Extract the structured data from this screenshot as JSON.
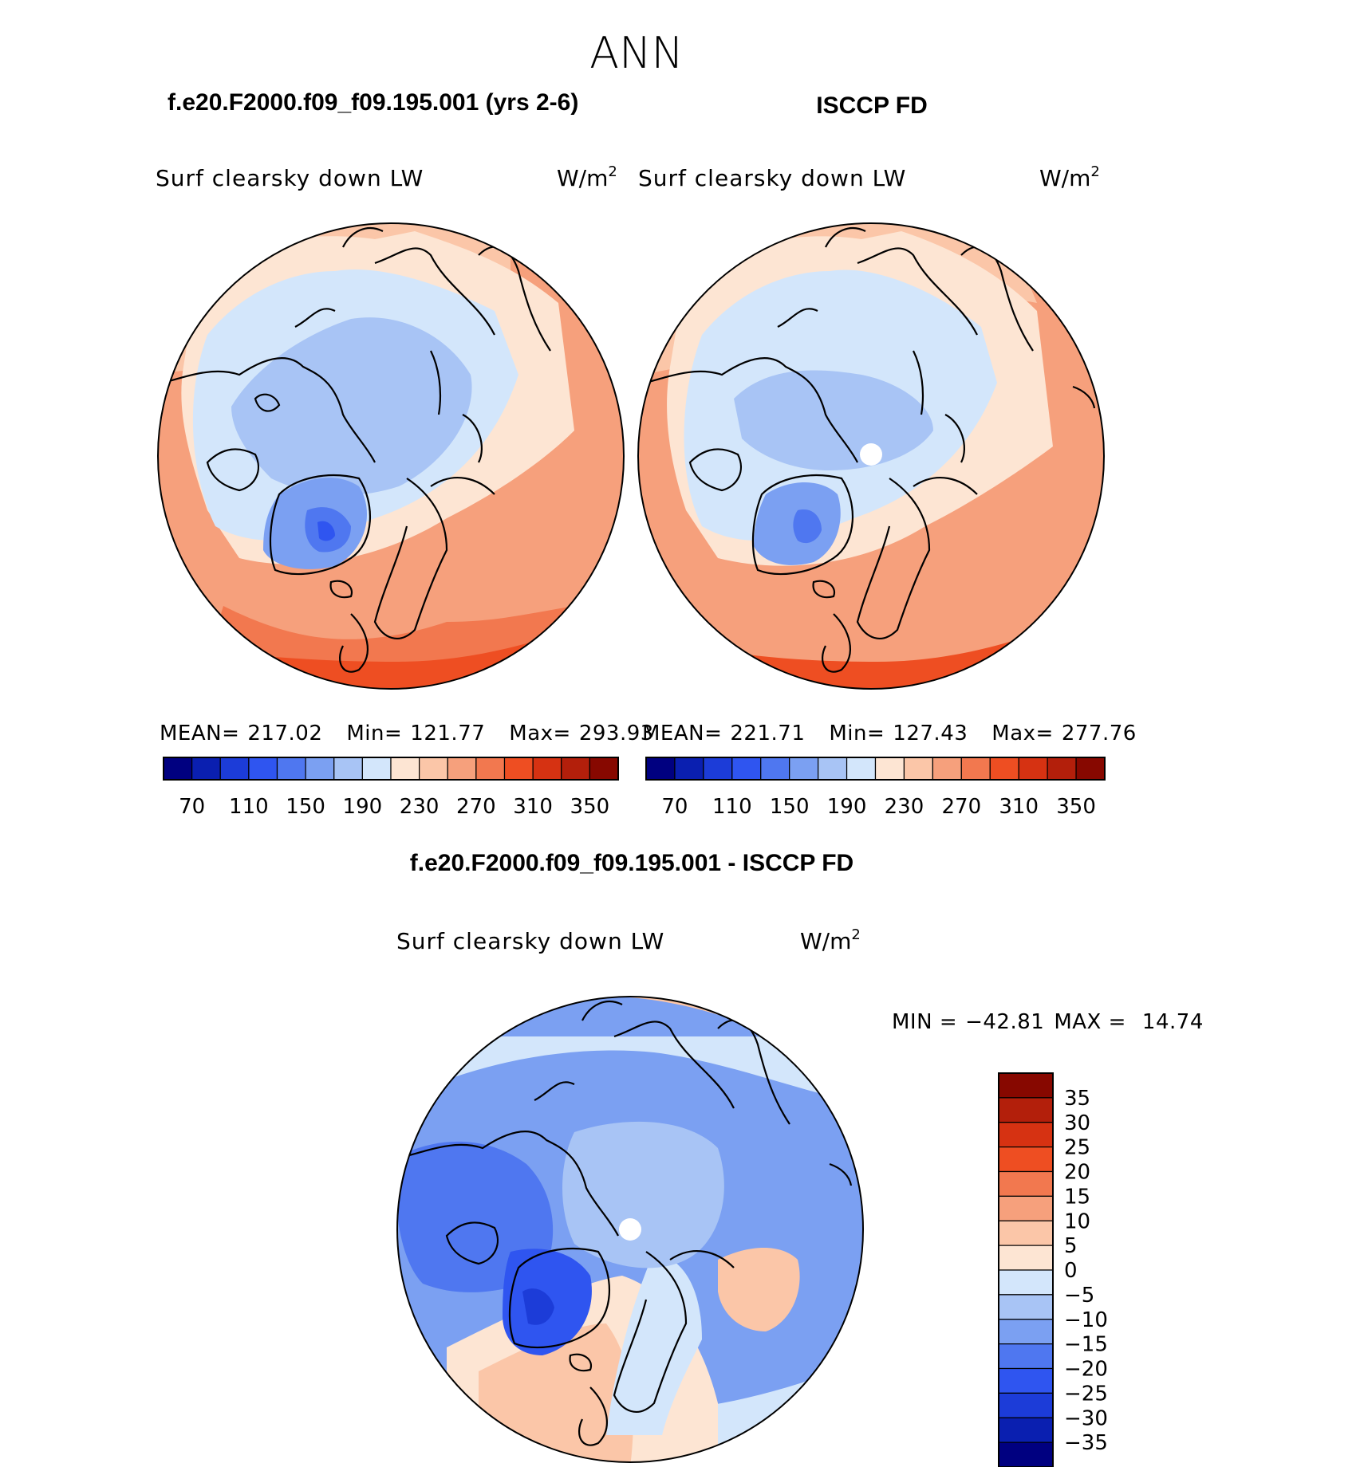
{
  "page_title": "ANN",
  "chart_data": [
    {
      "type": "heatmap",
      "title": "f.e20.F2000.f09_f09.195.001 (yrs 2-6)",
      "variable": "Surf clearsky down LW",
      "units": "W/m",
      "units_sup": "2",
      "projection": "north polar stereographic",
      "stats": {
        "mean_label": "MEAN=",
        "mean": "217.02",
        "min_label": "Min=",
        "min": "121.77",
        "max_label": "Max=",
        "max": "293.93"
      },
      "colorbar": {
        "orientation": "horizontal",
        "colors": [
          "#000080",
          "#0a1fb0",
          "#1c3cd8",
          "#2f55f0",
          "#4f77f0",
          "#7ba0f2",
          "#a8c4f5",
          "#d3e6fb",
          "#fde5d3",
          "#fbc6a8",
          "#f6a07c",
          "#f2784f",
          "#ee4e22",
          "#d63212",
          "#b31f0b",
          "#870800"
        ],
        "tick_labels": [
          "70",
          "110",
          "150",
          "190",
          "230",
          "270",
          "310",
          "350"
        ]
      }
    },
    {
      "type": "heatmap",
      "title": "ISCCP FD",
      "variable": "Surf clearsky down LW",
      "units": "W/m",
      "units_sup": "2",
      "projection": "north polar stereographic",
      "stats": {
        "mean_label": "MEAN=",
        "mean": "221.71",
        "min_label": "Min=",
        "min": "127.43",
        "max_label": "Max=",
        "max": "277.76"
      },
      "colorbar": {
        "orientation": "horizontal",
        "colors": [
          "#000080",
          "#0a1fb0",
          "#1c3cd8",
          "#2f55f0",
          "#4f77f0",
          "#7ba0f2",
          "#a8c4f5",
          "#d3e6fb",
          "#fde5d3",
          "#fbc6a8",
          "#f6a07c",
          "#f2784f",
          "#ee4e22",
          "#d63212",
          "#b31f0b",
          "#870800"
        ],
        "tick_labels": [
          "70",
          "110",
          "150",
          "190",
          "230",
          "270",
          "310",
          "350"
        ]
      }
    },
    {
      "type": "heatmap",
      "title": "f.e20.F2000.f09_f09.195.001 - ISCCP FD",
      "variable": "Surf clearsky down LW",
      "units": "W/m",
      "units_sup": "2",
      "projection": "north polar stereographic",
      "stats": {
        "min_label": "MIN =",
        "min": "−42.81",
        "max_label": "MAX =",
        "max": "14.74"
      },
      "colorbar": {
        "orientation": "vertical",
        "colors_top_to_bottom": [
          "#870800",
          "#b31f0b",
          "#d63212",
          "#ee4e22",
          "#f2784f",
          "#f6a07c",
          "#fbc6a8",
          "#fde5d3",
          "#d3e6fb",
          "#a8c4f5",
          "#7ba0f2",
          "#4f77f0",
          "#2f55f0",
          "#1c3cd8",
          "#0a1fb0",
          "#000080"
        ],
        "tick_labels_top_to_bottom": [
          "35",
          "30",
          "25",
          "20",
          "15",
          "10",
          "5",
          "0",
          "−5",
          "−10",
          "−15",
          "−20",
          "−25",
          "−30",
          "−35"
        ]
      }
    }
  ]
}
